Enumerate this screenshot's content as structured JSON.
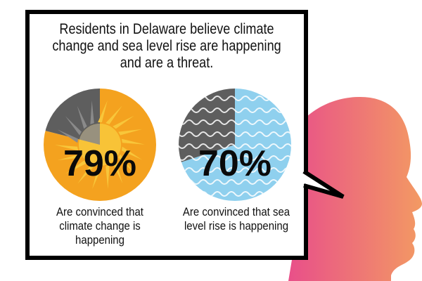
{
  "headline": "Residents in Delaware believe climate change and sea level rise are happening and are a threat.",
  "colors": {
    "head_gradient_start": "#e84c8b",
    "head_gradient_end": "#f39a63",
    "sun_orange": "#f4a21f",
    "sun_yellow": "#f8c63a",
    "wave_blue": "#8fd0ee",
    "remainder_gray": "#5e5e5e",
    "remainder_light_gray": "#8a8a8a"
  },
  "chart_data": [
    {
      "type": "pie",
      "slices": [
        {
          "label": "Are convinced that climate change is happening",
          "value": 79
        },
        {
          "label": "",
          "value": 21
        }
      ],
      "value_label": "79%",
      "caption": "Are convinced that climate change is happening",
      "icon": "sun-icon"
    },
    {
      "type": "pie",
      "slices": [
        {
          "label": "Are convinced that sea level rise is happening",
          "value": 70
        },
        {
          "label": "",
          "value": 30
        }
      ],
      "value_label": "70%",
      "caption": "Are convinced that sea level rise is happening",
      "icon": "wave-icon"
    }
  ]
}
